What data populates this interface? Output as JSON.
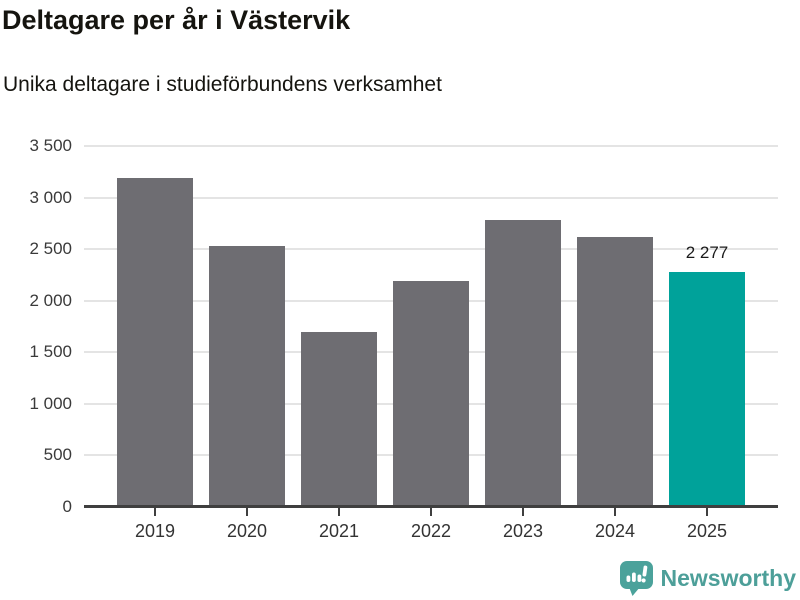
{
  "header": {
    "title": "Deltagare per år i Västervik",
    "subtitle": "Unika deltagare i studieförbundens verksamhet"
  },
  "chart_data": {
    "type": "bar",
    "title": "Deltagare per år i Västervik",
    "subtitle": "Unika deltagare i studieförbundens verksamhet",
    "categories": [
      "2019",
      "2020",
      "2021",
      "2022",
      "2023",
      "2024",
      "2025"
    ],
    "values": [
      3190,
      2530,
      1700,
      2190,
      2780,
      2620,
      2277
    ],
    "highlighted_index": 6,
    "highlighted_value_label": "2 277",
    "ylim": [
      0,
      3500
    ],
    "yticks": [
      0,
      500,
      1000,
      1500,
      2000,
      2500,
      3000,
      3500
    ],
    "ytick_labels": [
      "0",
      "500",
      "1 000",
      "1 500",
      "2 000",
      "2 500",
      "3 000",
      "3 500"
    ],
    "xlabel": "",
    "ylabel": "",
    "grid": true,
    "legend_position": "none",
    "bar_color": "#6e6d72",
    "highlight_color": "#00a29a"
  },
  "footer": {
    "brand": "Newsworthy",
    "brand_color": "#4d9f99",
    "logo_icon": "bar-chart-speech-bubble-icon"
  },
  "colors": {
    "bar_default": "#6e6d72",
    "bar_highlight": "#00a29a",
    "gridline": "#e4e4e4",
    "axis": "#3f3f3f",
    "title_text": "#15140f",
    "tick_label": "#3a3a3a"
  }
}
